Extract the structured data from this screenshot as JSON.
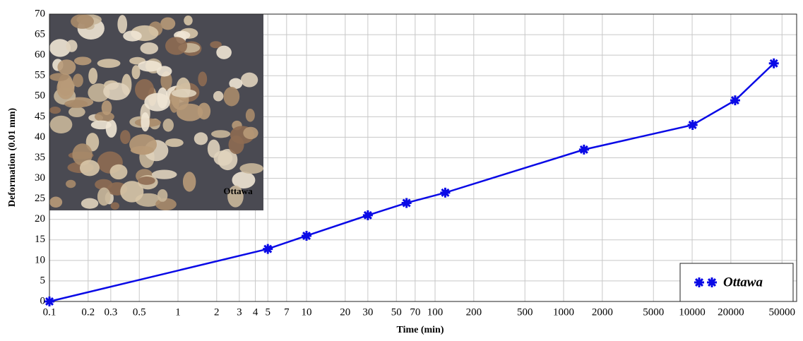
{
  "chart_data": {
    "type": "line",
    "x_label": "Time (min)",
    "y_label": "Deformation (0.01 mm)",
    "x_scale": "log",
    "grid": true,
    "legend_position": "bottom-right",
    "inset_label": "Ottawa",
    "xlim": [
      0.1,
      65000
    ],
    "ylim": [
      0,
      70
    ],
    "xticks": [
      0.1,
      0.2,
      0.3,
      0.5,
      1,
      2,
      3,
      4,
      5,
      7,
      10,
      20,
      30,
      50,
      70,
      100,
      200,
      500,
      1000,
      2000,
      5000,
      10000,
      20000,
      50000
    ],
    "yticks": [
      0,
      5,
      10,
      15,
      20,
      25,
      30,
      35,
      40,
      45,
      50,
      55,
      60,
      65,
      70
    ],
    "x": [
      0.1,
      5,
      10,
      30,
      60,
      120,
      1440,
      10080,
      21600,
      43200
    ],
    "series": [
      {
        "name": "Ottawa",
        "color": "#0a0ae6",
        "values": [
          0,
          12.8,
          16,
          21,
          24,
          26.5,
          37,
          43,
          49,
          58
        ]
      }
    ]
  }
}
